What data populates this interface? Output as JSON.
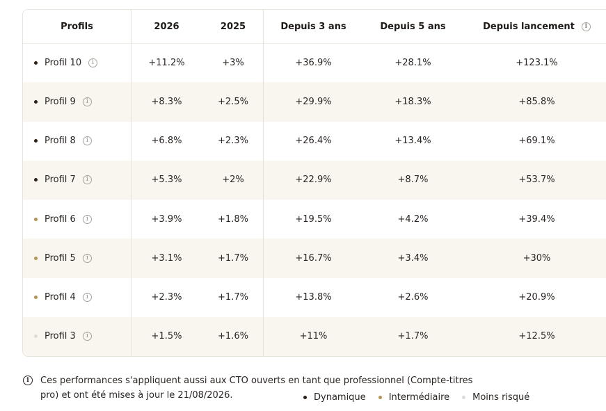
{
  "table": {
    "headers": {
      "profil": "Profils",
      "y2026": "2026",
      "y2025": "2025",
      "ans3": "Depuis 3 ans",
      "ans5": "Depuis 5 ans",
      "lancement": "Depuis lancement"
    },
    "info_glyph": "i",
    "rows": [
      {
        "profil": "Profil 10",
        "y2026": "+11.2%",
        "y2025": "+3%",
        "ans3": "+36.9%",
        "ans5": "+28.1%",
        "lancement": "+123.1%",
        "category": "dynamique"
      },
      {
        "profil": "Profil 9",
        "y2026": "+8.3%",
        "y2025": "+2.5%",
        "ans3": "+29.9%",
        "ans5": "+18.3%",
        "lancement": "+85.8%",
        "category": "dynamique"
      },
      {
        "profil": "Profil 8",
        "y2026": "+6.8%",
        "y2025": "+2.3%",
        "ans3": "+26.4%",
        "ans5": "+13.4%",
        "lancement": "+69.1%",
        "category": "dynamique"
      },
      {
        "profil": "Profil 7",
        "y2026": "+5.3%",
        "y2025": "+2%",
        "ans3": "+22.9%",
        "ans5": "+8.7%",
        "lancement": "+53.7%",
        "category": "dynamique"
      },
      {
        "profil": "Profil 6",
        "y2026": "+3.9%",
        "y2025": "+1.8%",
        "ans3": "+19.5%",
        "ans5": "+4.2%",
        "lancement": "+39.4%",
        "category": "intermediaire"
      },
      {
        "profil": "Profil 5",
        "y2026": "+3.1%",
        "y2025": "+1.7%",
        "ans3": "+16.7%",
        "ans5": "+3.4%",
        "lancement": "+30%",
        "category": "intermediaire"
      },
      {
        "profil": "Profil 4",
        "y2026": "+2.3%",
        "y2025": "+1.7%",
        "ans3": "+13.8%",
        "ans5": "+2.6%",
        "lancement": "+20.9%",
        "category": "intermediaire"
      },
      {
        "profil": "Profil 3",
        "y2026": "+1.5%",
        "y2025": "+1.6%",
        "ans3": "+11%",
        "ans5": "+1.7%",
        "lancement": "+12.5%",
        "category": "moins_risque"
      }
    ]
  },
  "colors": {
    "dynamique": "#2b2018",
    "intermediaire": "#b39355",
    "moins_risque": "#dedbd5"
  },
  "footer": {
    "icon": "i",
    "note": "Ces performances s'appliquent aussi aux CTO ouverts en tant que professionnel (Compte-titres pro) et ont été mises à jour le 21/08/2026."
  },
  "legend": [
    {
      "key": "dynamique",
      "label": "Dynamique"
    },
    {
      "key": "intermediaire",
      "label": "Intermédiaire"
    },
    {
      "key": "moins_risque",
      "label": "Moins risqué"
    }
  ]
}
